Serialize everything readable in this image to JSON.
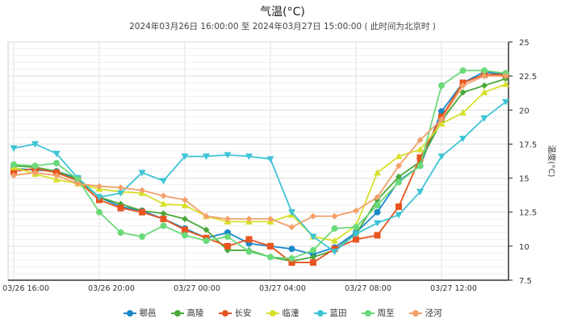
{
  "chart_data": {
    "type": "line",
    "title": "气温(°C)",
    "subtitle": "2024年03月26日 16:00:00 至 2024年03月27日 15:00:00 ( 此时间为北京时 )",
    "ylabel": "温度(°C)",
    "xlabel": "",
    "ylim": [
      7.5,
      25
    ],
    "yticks": [
      "7.5",
      "10",
      "12.5",
      "15",
      "17.5",
      "20",
      "22.5",
      "25"
    ],
    "x": [
      "03/26 16:00",
      "03/26 17:00",
      "03/26 18:00",
      "03/26 19:00",
      "03/26 20:00",
      "03/26 21:00",
      "03/26 22:00",
      "03/26 23:00",
      "03/27 00:00",
      "03/27 01:00",
      "03/27 02:00",
      "03/27 03:00",
      "03/27 04:00",
      "03/27 05:00",
      "03/27 06:00",
      "03/27 07:00",
      "03/27 08:00",
      "03/27 09:00",
      "03/27 10:00",
      "03/27 11:00",
      "03/27 12:00",
      "03/27 13:00",
      "03/27 14:00",
      "03/27 15:00"
    ],
    "xticks": [
      "03/26 16:00",
      "03/26 20:00",
      "03/27 00:00",
      "03/27 04:00",
      "03/27 08:00",
      "03/27 12:00"
    ],
    "grid": true,
    "legend_position": "bottom",
    "series": [
      {
        "name": "鄠邑",
        "color": "#1a88c9",
        "marker": "circle",
        "values": [
          15.7,
          15.6,
          15.5,
          15.0,
          13.6,
          12.9,
          12.6,
          12.0,
          11.3,
          10.6,
          11.0,
          10.2,
          10.0,
          9.8,
          9.4,
          9.9,
          11.0,
          12.5,
          14.8,
          15.9,
          19.9,
          22.0,
          22.8,
          22.6
        ]
      },
      {
        "name": "高陵",
        "color": "#4aa83a",
        "marker": "diamond",
        "values": [
          15.9,
          15.8,
          15.5,
          14.9,
          13.6,
          13.1,
          12.6,
          12.4,
          12.0,
          11.2,
          9.7,
          9.7,
          9.2,
          8.9,
          9.2,
          9.7,
          10.9,
          13.4,
          15.1,
          16.2,
          19.2,
          21.3,
          21.8,
          22.3
        ]
      },
      {
        "name": "长安",
        "color": "#e8541f",
        "marker": "square",
        "values": [
          15.5,
          15.7,
          15.4,
          14.8,
          13.4,
          12.8,
          12.5,
          12.0,
          11.2,
          10.6,
          10.0,
          10.5,
          10.0,
          8.8,
          8.8,
          9.8,
          10.5,
          10.8,
          12.9,
          16.5,
          19.5,
          22.0,
          22.6,
          22.6
        ]
      },
      {
        "name": "临潼",
        "color": "#d8e02c",
        "marker": "triangle",
        "values": [
          15.8,
          15.3,
          14.9,
          14.6,
          14.2,
          14.0,
          13.9,
          13.1,
          13.0,
          12.2,
          11.8,
          11.8,
          11.8,
          12.3,
          10.7,
          10.4,
          11.5,
          15.4,
          16.6,
          17.1,
          19.0,
          19.8,
          21.3,
          21.9
        ]
      },
      {
        "name": "蓝田",
        "color": "#3ec4d6",
        "marker": "triangle-down",
        "values": [
          17.2,
          17.5,
          16.8,
          15.0,
          13.6,
          13.9,
          15.4,
          14.8,
          16.6,
          16.6,
          16.7,
          16.6,
          16.4,
          12.5,
          10.7,
          9.6,
          10.9,
          11.7,
          12.3,
          14.0,
          16.6,
          17.9,
          19.4,
          20.6
        ]
      },
      {
        "name": "周至",
        "color": "#6cd97a",
        "marker": "circle",
        "values": [
          16.0,
          15.9,
          16.1,
          14.9,
          12.5,
          11.0,
          10.7,
          11.5,
          10.8,
          10.4,
          10.7,
          9.6,
          9.2,
          9.1,
          9.7,
          11.3,
          11.4,
          13.0,
          14.7,
          15.9,
          21.8,
          22.9,
          22.9,
          22.7
        ]
      },
      {
        "name": "泾河",
        "color": "#f3a06a",
        "marker": "diamond",
        "values": [
          15.2,
          15.4,
          15.2,
          14.6,
          14.4,
          14.3,
          14.1,
          13.7,
          13.4,
          12.2,
          12.0,
          12.0,
          12.0,
          11.4,
          12.2,
          12.2,
          12.6,
          13.6,
          15.9,
          17.8,
          19.3,
          21.8,
          22.5,
          22.5
        ]
      }
    ]
  }
}
